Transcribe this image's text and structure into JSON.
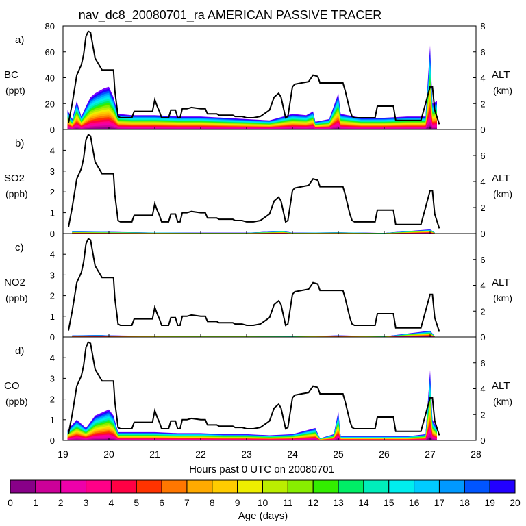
{
  "chart_data": {
    "type": "area",
    "title": "nav_dc8_20080701_ra AMERICAN PASSIVE TRACER",
    "xlabel": "Hours past 0 UTC on 20080701",
    "xlim": [
      19,
      28
    ],
    "x_ticks": [
      "19",
      "20",
      "21",
      "22",
      "23",
      "24",
      "25",
      "26",
      "27",
      "28"
    ],
    "altitude_km": [
      [
        19.12,
        0.5
      ],
      [
        19.2,
        2.0
      ],
      [
        19.3,
        4.2
      ],
      [
        19.4,
        5.0
      ],
      [
        19.45,
        5.8
      ],
      [
        19.5,
        7.2
      ],
      [
        19.55,
        7.6
      ],
      [
        19.6,
        7.5
      ],
      [
        19.65,
        6.5
      ],
      [
        19.7,
        5.5
      ],
      [
        19.8,
        4.9
      ],
      [
        19.85,
        4.6
      ],
      [
        20.0,
        4.6
      ],
      [
        20.1,
        4.6
      ],
      [
        20.13,
        3.0
      ],
      [
        20.2,
        1.0
      ],
      [
        20.25,
        0.9
      ],
      [
        20.5,
        0.9
      ],
      [
        20.55,
        1.4
      ],
      [
        20.95,
        1.4
      ],
      [
        21.0,
        2.3
      ],
      [
        21.05,
        1.8
      ],
      [
        21.1,
        1.4
      ],
      [
        21.15,
        0.9
      ],
      [
        21.3,
        0.9
      ],
      [
        21.35,
        1.5
      ],
      [
        21.45,
        1.5
      ],
      [
        21.5,
        0.9
      ],
      [
        21.55,
        0.9
      ],
      [
        21.6,
        1.6
      ],
      [
        21.7,
        1.6
      ],
      [
        21.8,
        1.7
      ],
      [
        22.0,
        1.6
      ],
      [
        22.1,
        1.6
      ],
      [
        22.15,
        1.2
      ],
      [
        22.3,
        1.2
      ],
      [
        22.35,
        1.2
      ],
      [
        22.4,
        1.1
      ],
      [
        22.7,
        1.1
      ],
      [
        22.75,
        1.0
      ],
      [
        22.9,
        1.0
      ],
      [
        23.0,
        0.9
      ],
      [
        23.15,
        0.9
      ],
      [
        23.3,
        1.0
      ],
      [
        23.5,
        1.5
      ],
      [
        23.6,
        2.5
      ],
      [
        23.7,
        2.8
      ],
      [
        23.75,
        2.5
      ],
      [
        23.85,
        0.9
      ],
      [
        23.9,
        1.0
      ],
      [
        24.0,
        3.3
      ],
      [
        24.05,
        3.5
      ],
      [
        24.2,
        3.6
      ],
      [
        24.35,
        3.7
      ],
      [
        24.45,
        4.2
      ],
      [
        24.55,
        4.1
      ],
      [
        24.6,
        3.6
      ],
      [
        24.9,
        3.6
      ],
      [
        25.1,
        3.6
      ],
      [
        25.15,
        3.0
      ],
      [
        25.25,
        1.5
      ],
      [
        25.3,
        1.0
      ],
      [
        25.35,
        0.9
      ],
      [
        25.8,
        0.9
      ],
      [
        25.85,
        1.8
      ],
      [
        26.2,
        1.8
      ],
      [
        26.25,
        0.7
      ],
      [
        26.8,
        0.7
      ],
      [
        26.9,
        2.0
      ],
      [
        27.0,
        3.3
      ],
      [
        27.05,
        3.3
      ],
      [
        27.1,
        1.5
      ],
      [
        27.2,
        0.4
      ]
    ],
    "panels": [
      {
        "label": "a)",
        "species": "BC",
        "unit": "(ppt)",
        "ylim": [
          0,
          80
        ],
        "y_ticks": [
          "0",
          "20",
          "40",
          "60",
          "80"
        ],
        "alt_ticks": [
          "0",
          "2",
          "4",
          "6",
          "8"
        ],
        "alt_lim": [
          0,
          8
        ],
        "alt_label": "ALT",
        "alt_unit": "(km)"
      },
      {
        "label": "b)",
        "species": "SO2",
        "unit": "(ppb)",
        "ylim": [
          0,
          5
        ],
        "y_ticks": [
          "0",
          "1",
          "2",
          "3",
          "4"
        ],
        "alt_ticks": [
          "0",
          "2",
          "4",
          "6"
        ],
        "alt_lim": [
          0,
          8
        ],
        "alt_label": "ALT",
        "alt_unit": "(km)"
      },
      {
        "label": "c)",
        "species": "NO2",
        "unit": "(ppb)",
        "ylim": [
          0,
          5
        ],
        "y_ticks": [
          "0",
          "1",
          "2",
          "3",
          "4"
        ],
        "alt_ticks": [
          "0",
          "2",
          "4",
          "6"
        ],
        "alt_lim": [
          0,
          8
        ],
        "alt_label": "ALT",
        "alt_unit": "(km)"
      },
      {
        "label": "d)",
        "species": "CO",
        "unit": "(ppb)",
        "ylim": [
          0,
          5
        ],
        "y_ticks": [
          "0",
          "1",
          "2",
          "3",
          "4"
        ],
        "alt_ticks": [
          "0",
          "2",
          "4",
          "6"
        ],
        "alt_lim": [
          0,
          8
        ],
        "alt_label": "ALT",
        "alt_unit": "(km)"
      }
    ],
    "tracer_total": [
      {
        "panel": 0,
        "points": [
          [
            19.1,
            15
          ],
          [
            19.2,
            8
          ],
          [
            19.3,
            22
          ],
          [
            19.4,
            10
          ],
          [
            19.5,
            18
          ],
          [
            19.6,
            25
          ],
          [
            19.7,
            28
          ],
          [
            19.8,
            30
          ],
          [
            19.9,
            32
          ],
          [
            20.0,
            33
          ],
          [
            20.1,
            25
          ],
          [
            20.2,
            12
          ],
          [
            20.5,
            11
          ],
          [
            21.0,
            11
          ],
          [
            21.5,
            10
          ],
          [
            22.0,
            10
          ],
          [
            22.5,
            9
          ],
          [
            23.0,
            8
          ],
          [
            23.5,
            7
          ],
          [
            23.8,
            10
          ],
          [
            24.0,
            12
          ],
          [
            24.3,
            11
          ],
          [
            24.45,
            14
          ],
          [
            24.5,
            6
          ],
          [
            24.8,
            8
          ],
          [
            25.0,
            28
          ],
          [
            25.05,
            12
          ],
          [
            25.5,
            9
          ],
          [
            26.0,
            9
          ],
          [
            26.5,
            10
          ],
          [
            26.9,
            10
          ],
          [
            27.0,
            65
          ],
          [
            27.05,
            20
          ],
          [
            27.15,
            22
          ]
        ]
      },
      {
        "panel": 1,
        "points": [
          [
            19.2,
            0.1
          ],
          [
            20.0,
            0.08
          ],
          [
            21.0,
            0.05
          ],
          [
            22.0,
            0.04
          ],
          [
            23.0,
            0.04
          ],
          [
            23.8,
            0.12
          ],
          [
            24.0,
            0.04
          ],
          [
            25.0,
            0.06
          ],
          [
            26.0,
            0.03
          ],
          [
            27.0,
            0.2
          ],
          [
            27.1,
            0.05
          ]
        ]
      },
      {
        "panel": 2,
        "points": [
          [
            19.2,
            0.08
          ],
          [
            19.8,
            0.1
          ],
          [
            20.0,
            0.08
          ],
          [
            21.0,
            0.05
          ],
          [
            22.0,
            0.04
          ],
          [
            23.0,
            0.04
          ],
          [
            24.0,
            0.03
          ],
          [
            25.0,
            0.08
          ],
          [
            26.0,
            0.03
          ],
          [
            27.0,
            0.3
          ],
          [
            27.1,
            0.05
          ]
        ]
      },
      {
        "panel": 3,
        "points": [
          [
            19.1,
            0.5
          ],
          [
            19.3,
            1.0
          ],
          [
            19.5,
            0.6
          ],
          [
            19.7,
            1.2
          ],
          [
            19.9,
            1.4
          ],
          [
            20.0,
            1.5
          ],
          [
            20.1,
            1.2
          ],
          [
            20.2,
            0.4
          ],
          [
            20.5,
            0.4
          ],
          [
            21.0,
            0.4
          ],
          [
            21.5,
            0.35
          ],
          [
            22.0,
            0.35
          ],
          [
            22.5,
            0.3
          ],
          [
            23.0,
            0.3
          ],
          [
            23.5,
            0.25
          ],
          [
            24.0,
            0.3
          ],
          [
            24.5,
            0.6
          ],
          [
            24.6,
            0.1
          ],
          [
            24.9,
            0.3
          ],
          [
            25.0,
            1.4
          ],
          [
            25.05,
            0.2
          ],
          [
            25.5,
            0.2
          ],
          [
            26.0,
            0.2
          ],
          [
            26.5,
            0.2
          ],
          [
            26.9,
            0.3
          ],
          [
            27.0,
            3.4
          ],
          [
            27.05,
            1.0
          ],
          [
            27.15,
            0.6
          ]
        ]
      }
    ],
    "colorbar": {
      "label": "Age (days)",
      "ticks": [
        "0",
        "1",
        "2",
        "3",
        "4",
        "5",
        "6",
        "7",
        "8",
        "9",
        "10",
        "11",
        "12",
        "13",
        "14",
        "15",
        "16",
        "17",
        "18",
        "19",
        "20"
      ],
      "colors": [
        "#880088",
        "#cc0099",
        "#ee00aa",
        "#ff0088",
        "#ff0044",
        "#ff3300",
        "#ff7700",
        "#ffaa00",
        "#ffcc00",
        "#eeee00",
        "#bbee00",
        "#88ee00",
        "#33ee00",
        "#00ee66",
        "#00eebb",
        "#00eeee",
        "#00ccff",
        "#0099ff",
        "#0055ff",
        "#2200ff",
        "#7700ff"
      ]
    }
  }
}
